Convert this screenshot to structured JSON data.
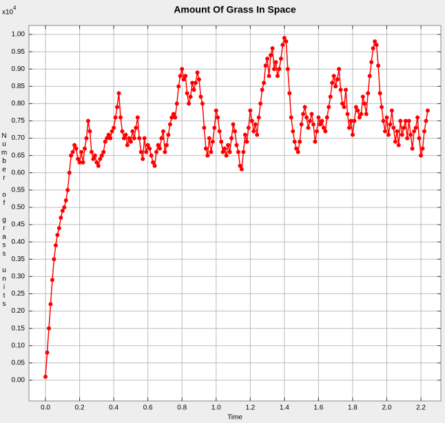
{
  "chart_data": {
    "type": "line",
    "title": "Amount Of Grass In Space",
    "x_label": "Time",
    "y_label": "Number of grass units",
    "y_multiplier": {
      "base": "x10",
      "exponent": "4"
    },
    "color": "#ff0000",
    "markers": true,
    "grid": true,
    "xlim": [
      -0.097,
      2.317
    ],
    "ylim": [
      -0.06,
      1.026
    ],
    "xticks": [
      {
        "value": 0,
        "label": "0.0"
      },
      0.2,
      0.4,
      0.6,
      0.8,
      {
        "value": 1,
        "label": "1.0"
      },
      1.2,
      1.4,
      1.6,
      1.8,
      {
        "value": 2,
        "label": "2.0"
      },
      2.2
    ],
    "yticks": [
      {
        "value": 0,
        "label": "0.00"
      },
      0.05,
      {
        "value": 0.1,
        "label": "0.10"
      },
      0.15,
      {
        "value": 0.2,
        "label": "0.20"
      },
      0.25,
      {
        "value": 0.3,
        "label": "0.30"
      },
      0.35,
      {
        "value": 0.4,
        "label": "0.40"
      },
      0.45,
      {
        "value": 0.5,
        "label": "0.50"
      },
      0.55,
      {
        "value": 0.6,
        "label": "0.60"
      },
      0.65,
      {
        "value": 0.7,
        "label": "0.70"
      },
      0.75,
      {
        "value": 0.8,
        "label": "0.80"
      },
      0.85,
      {
        "value": 0.9,
        "label": "0.90"
      },
      0.95,
      {
        "value": 1,
        "label": "1.00"
      }
    ],
    "x": [
      0,
      0.01,
      0.02,
      0.03,
      0.04,
      0.05,
      0.06,
      0.07,
      0.08,
      0.09,
      0.1,
      0.11,
      0.12,
      0.13,
      0.14,
      0.15,
      0.16,
      0.17,
      0.18,
      0.19,
      0.2,
      0.21,
      0.22,
      0.23,
      0.24,
      0.25,
      0.26,
      0.27,
      0.28,
      0.29,
      0.3,
      0.31,
      0.32,
      0.33,
      0.34,
      0.35,
      0.36,
      0.37,
      0.38,
      0.39,
      0.4,
      0.41,
      0.42,
      0.43,
      0.44,
      0.45,
      0.46,
      0.47,
      0.48,
      0.49,
      0.5,
      0.51,
      0.52,
      0.53,
      0.54,
      0.55,
      0.56,
      0.57,
      0.58,
      0.59,
      0.6,
      0.61,
      0.62,
      0.63,
      0.64,
      0.65,
      0.66,
      0.67,
      0.68,
      0.69,
      0.7,
      0.71,
      0.72,
      0.73,
      0.74,
      0.75,
      0.76,
      0.77,
      0.78,
      0.79,
      0.8,
      0.81,
      0.82,
      0.83,
      0.84,
      0.85,
      0.86,
      0.87,
      0.88,
      0.89,
      0.9,
      0.91,
      0.92,
      0.93,
      0.94,
      0.95,
      0.96,
      0.97,
      0.98,
      0.99,
      1,
      1.01,
      1.02,
      1.03,
      1.04,
      1.05,
      1.06,
      1.07,
      1.08,
      1.09,
      1.1,
      1.11,
      1.12,
      1.13,
      1.14,
      1.15,
      1.16,
      1.17,
      1.18,
      1.19,
      1.2,
      1.21,
      1.22,
      1.23,
      1.24,
      1.25,
      1.26,
      1.27,
      1.28,
      1.29,
      1.3,
      1.31,
      1.32,
      1.33,
      1.34,
      1.35,
      1.36,
      1.37,
      1.38,
      1.39,
      1.4,
      1.41,
      1.42,
      1.43,
      1.44,
      1.45,
      1.46,
      1.47,
      1.48,
      1.49,
      1.5,
      1.51,
      1.52,
      1.53,
      1.54,
      1.55,
      1.56,
      1.57,
      1.58,
      1.59,
      1.6,
      1.61,
      1.62,
      1.63,
      1.64,
      1.65,
      1.66,
      1.67,
      1.68,
      1.69,
      1.7,
      1.71,
      1.72,
      1.73,
      1.74,
      1.75,
      1.76,
      1.77,
      1.78,
      1.79,
      1.8,
      1.81,
      1.82,
      1.83,
      1.84,
      1.85,
      1.86,
      1.87,
      1.88,
      1.89,
      1.9,
      1.91,
      1.92,
      1.93,
      1.94,
      1.95,
      1.96,
      1.97,
      1.98,
      1.99,
      2,
      2.01,
      2.02,
      2.03,
      2.04,
      2.05,
      2.06,
      2.07,
      2.08,
      2.09,
      2.1,
      2.11,
      2.12,
      2.13,
      2.14,
      2.15,
      2.16,
      2.17,
      2.18,
      2.19,
      2.2,
      2.21,
      2.22,
      2.23,
      2.24
    ],
    "values": [
      0.01,
      0.08,
      0.15,
      0.22,
      0.29,
      0.35,
      0.39,
      0.42,
      0.44,
      0.47,
      0.49,
      0.5,
      0.52,
      0.55,
      0.6,
      0.65,
      0.66,
      0.68,
      0.67,
      0.64,
      0.63,
      0.66,
      0.63,
      0.67,
      0.7,
      0.75,
      0.72,
      0.66,
      0.64,
      0.65,
      0.63,
      0.62,
      0.64,
      0.65,
      0.66,
      0.69,
      0.7,
      0.71,
      0.7,
      0.72,
      0.73,
      0.76,
      0.79,
      0.83,
      0.76,
      0.72,
      0.7,
      0.71,
      0.68,
      0.7,
      0.69,
      0.72,
      0.7,
      0.73,
      0.76,
      0.7,
      0.66,
      0.64,
      0.7,
      0.66,
      0.68,
      0.67,
      0.65,
      0.63,
      0.62,
      0.66,
      0.68,
      0.67,
      0.7,
      0.72,
      0.66,
      0.68,
      0.71,
      0.74,
      0.76,
      0.77,
      0.76,
      0.8,
      0.85,
      0.88,
      0.9,
      0.87,
      0.88,
      0.83,
      0.8,
      0.82,
      0.86,
      0.84,
      0.86,
      0.89,
      0.87,
      0.82,
      0.8,
      0.73,
      0.67,
      0.65,
      0.7,
      0.66,
      0.69,
      0.73,
      0.78,
      0.76,
      0.72,
      0.69,
      0.66,
      0.67,
      0.65,
      0.68,
      0.66,
      0.7,
      0.74,
      0.72,
      0.68,
      0.66,
      0.62,
      0.61,
      0.66,
      0.71,
      0.69,
      0.73,
      0.78,
      0.75,
      0.72,
      0.74,
      0.71,
      0.76,
      0.8,
      0.84,
      0.86,
      0.91,
      0.93,
      0.88,
      0.94,
      0.96,
      0.9,
      0.92,
      0.88,
      0.9,
      0.93,
      0.97,
      0.99,
      0.98,
      0.9,
      0.83,
      0.76,
      0.72,
      0.69,
      0.67,
      0.66,
      0.69,
      0.74,
      0.77,
      0.79,
      0.76,
      0.73,
      0.75,
      0.77,
      0.74,
      0.69,
      0.72,
      0.76,
      0.74,
      0.75,
      0.73,
      0.72,
      0.76,
      0.79,
      0.82,
      0.86,
      0.88,
      0.85,
      0.87,
      0.9,
      0.84,
      0.8,
      0.79,
      0.84,
      0.77,
      0.73,
      0.75,
      0.71,
      0.75,
      0.79,
      0.78,
      0.76,
      0.77,
      0.82,
      0.8,
      0.77,
      0.83,
      0.88,
      0.92,
      0.96,
      0.98,
      0.97,
      0.91,
      0.83,
      0.79,
      0.75,
      0.72,
      0.76,
      0.71,
      0.74,
      0.78,
      0.73,
      0.69,
      0.72,
      0.68,
      0.75,
      0.71,
      0.73,
      0.75,
      0.7,
      0.75,
      0.71,
      0.67,
      0.72,
      0.73,
      0.76,
      0.7,
      0.65,
      0.67,
      0.72,
      0.75,
      0.78
    ]
  }
}
